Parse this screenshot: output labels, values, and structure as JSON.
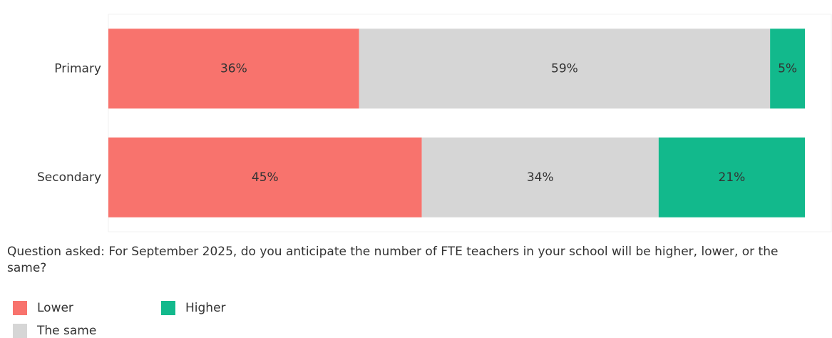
{
  "chart_data": {
    "type": "stacked-bar-horizontal",
    "categories": [
      "Primary",
      "Secondary"
    ],
    "series": [
      {
        "name": "Lower",
        "color": "#f8736d",
        "values": [
          36,
          45
        ],
        "value_labels": [
          "36%",
          "45%"
        ]
      },
      {
        "name": "The same",
        "color": "#d6d6d6",
        "values": [
          59,
          34
        ],
        "value_labels": [
          "59%",
          "34%"
        ]
      },
      {
        "name": "Higher",
        "color": "#12b98c",
        "values": [
          5,
          21
        ],
        "value_labels": [
          "5%",
          "21%"
        ]
      }
    ],
    "xlim": [
      0,
      100
    ],
    "note": "Question asked: For September 2025, do you anticipate the number of FTE teachers in your school will be higher, lower, or the same?"
  }
}
